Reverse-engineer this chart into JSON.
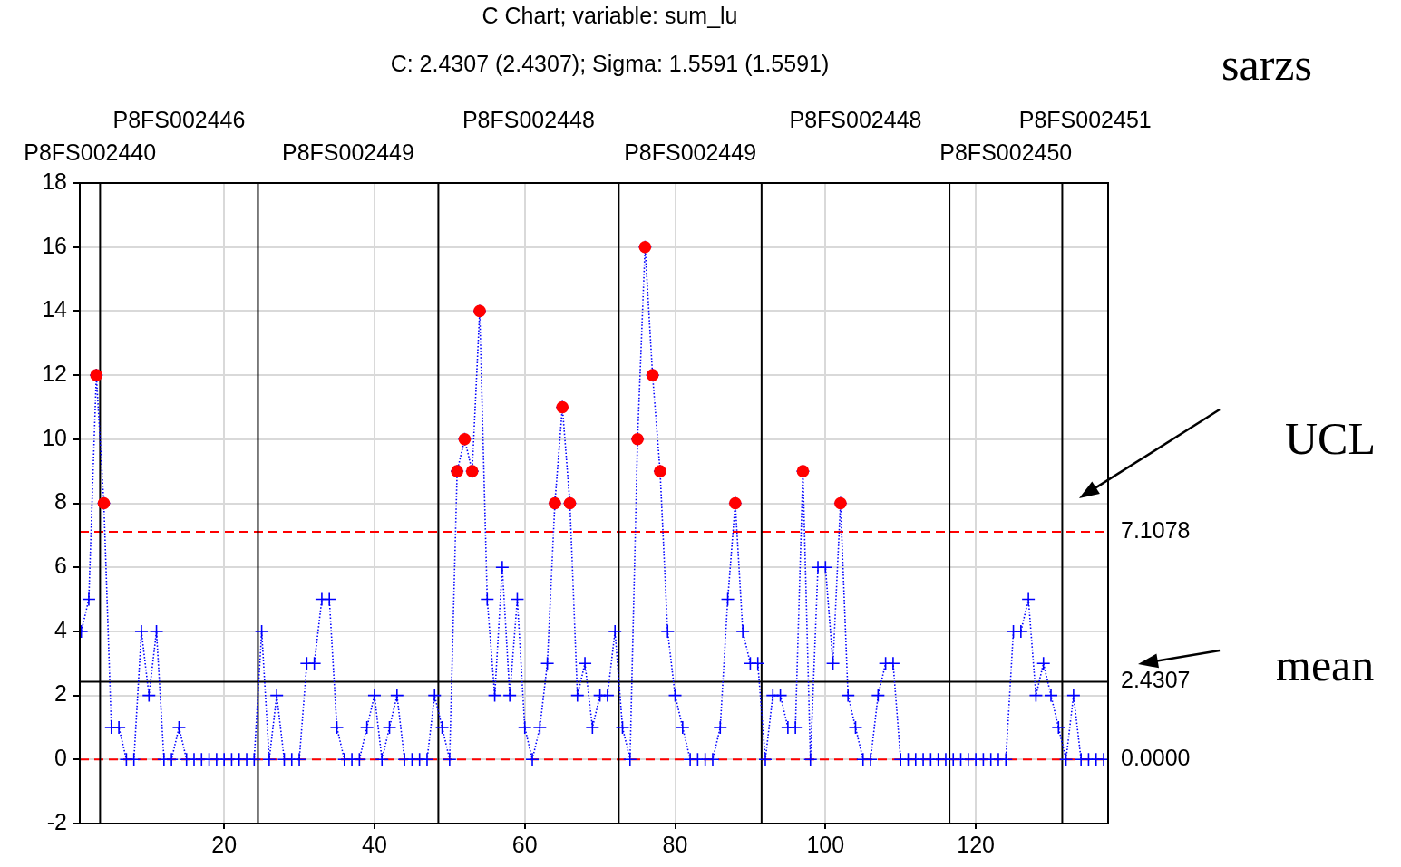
{
  "chart_data": {
    "type": "line",
    "title": "C Chart; variable:  sum_lu",
    "subtitle": "C: 2.4307 (2.4307); Sigma: 1.5591 (1.5591)",
    "annotations": [
      "sarzs",
      "UCL",
      "mean",
      "P8FS002440",
      "P8FS002446",
      "P8FS002449",
      "P8FS002448",
      "P8FS002449",
      "P8FS002448",
      "P8FS002450",
      "P8FS002451"
    ],
    "x": [
      1,
      2,
      3,
      4,
      5,
      6,
      7,
      8,
      9,
      10,
      11,
      12,
      13,
      14,
      15,
      16,
      17,
      18,
      19,
      20,
      21,
      22,
      23,
      24,
      25,
      26,
      27,
      28,
      29,
      30,
      31,
      32,
      33,
      34,
      35,
      36,
      37,
      38,
      39,
      40,
      41,
      42,
      43,
      44,
      45,
      46,
      47,
      48,
      49,
      50,
      51,
      52,
      53,
      54,
      55,
      56,
      57,
      58,
      59,
      60,
      61,
      62,
      63,
      64,
      65,
      66,
      67,
      68,
      69,
      70,
      71,
      72,
      73,
      74,
      75,
      76,
      77,
      78,
      79,
      80,
      81,
      82,
      83,
      84,
      85,
      86,
      87,
      88,
      89,
      90,
      91,
      92,
      93,
      94,
      95,
      96,
      97,
      98,
      99,
      100,
      101,
      102,
      103,
      104,
      105,
      106,
      107,
      108,
      109,
      110,
      111,
      112,
      113,
      114,
      115,
      116,
      117,
      118,
      119,
      120,
      121,
      122,
      123,
      124,
      125,
      126,
      127,
      128,
      129,
      130,
      131,
      132,
      133,
      134,
      135,
      136,
      137
    ],
    "series": [
      {
        "color": "#0000ff",
        "marker": "cross",
        "line_style": "dotted",
        "values": [
          4,
          5,
          12,
          8,
          1,
          1,
          0,
          0,
          4,
          2,
          4,
          0,
          0,
          1,
          0,
          0,
          0,
          0,
          0,
          0,
          0,
          0,
          0,
          0,
          4,
          0,
          2,
          0,
          0,
          0,
          3,
          3,
          5,
          5,
          1,
          0,
          0,
          0,
          1,
          2,
          0,
          1,
          2,
          0,
          0,
          0,
          0,
          2,
          1,
          0,
          9,
          10,
          9,
          14,
          5,
          2,
          6,
          2,
          5,
          1,
          0,
          1,
          3,
          8,
          11,
          8,
          2,
          3,
          1,
          2,
          2,
          4,
          1,
          0,
          10,
          16,
          12,
          9,
          4,
          2,
          1,
          0,
          0,
          0,
          0,
          1,
          5,
          8,
          4,
          3,
          3,
          0,
          2,
          2,
          1,
          1,
          9,
          0,
          6,
          6,
          3,
          8,
          2,
          1,
          0,
          0,
          2,
          3,
          3,
          0,
          0,
          0,
          0,
          0,
          0,
          0,
          0,
          0,
          0,
          0,
          0,
          0,
          0,
          0,
          4,
          4,
          5,
          2,
          3,
          2,
          1,
          0,
          2,
          0,
          0,
          0,
          0
        ]
      },
      {
        "type": "scatter",
        "color": "#ff0000",
        "marker": "circle",
        "x": [
          3,
          4,
          51,
          52,
          53,
          54,
          64,
          65,
          66,
          75,
          76,
          77,
          78,
          88,
          97,
          102
        ],
        "values": [
          12,
          8,
          9,
          10,
          9,
          14,
          8,
          11,
          8,
          10,
          16,
          12,
          9,
          8,
          9,
          8
        ]
      }
    ],
    "xlim": [
      0.8,
      137.6
    ],
    "xticks": [
      20,
      40,
      60,
      80,
      100,
      120
    ],
    "ylim": [
      -2,
      18
    ],
    "yticks": [
      -2,
      0,
      2,
      4,
      6,
      8,
      10,
      12,
      14,
      16,
      18
    ],
    "grid": true,
    "legend": false,
    "ref_lines": [
      {
        "axis": "y",
        "value": 7.1078,
        "label": "7.1078",
        "color": "#ff0000",
        "line_style": "dashed"
      },
      {
        "axis": "y",
        "value": 2.4307,
        "label": "2.4307",
        "color": "#000000",
        "line_style": "solid"
      },
      {
        "axis": "y",
        "value": 0,
        "label": "0.0000",
        "color": "#ff0000",
        "line_style": "dashed"
      },
      {
        "axis": "x",
        "value": 3.5,
        "color": "#000000",
        "line_style": "solid"
      },
      {
        "axis": "x",
        "value": 24.5,
        "color": "#000000",
        "line_style": "solid"
      },
      {
        "axis": "x",
        "value": 48.5,
        "color": "#000000",
        "line_style": "solid"
      },
      {
        "axis": "x",
        "value": 72.5,
        "color": "#000000",
        "line_style": "solid"
      },
      {
        "axis": "x",
        "value": 91.5,
        "color": "#000000",
        "line_style": "solid"
      },
      {
        "axis": "x",
        "value": 116.5,
        "color": "#000000",
        "line_style": "solid"
      },
      {
        "axis": "x",
        "value": 131.5,
        "color": "#000000",
        "line_style": "solid"
      }
    ]
  }
}
